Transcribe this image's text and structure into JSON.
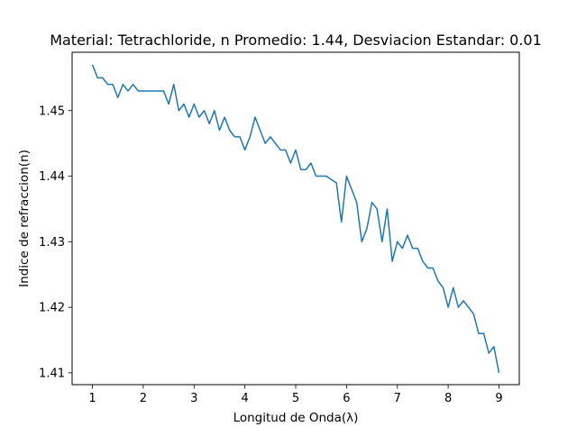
{
  "chart_data": {
    "type": "line",
    "title": "Material: Tetrachloride, n Promedio: 1.44, Desviacion Estandar: 0.01",
    "xlabel": "Longitud de Onda(λ)",
    "ylabel": "Indice de refraccion(n)",
    "xlim": [
      0.6,
      9.4
    ],
    "ylim": [
      1.4082,
      1.4589
    ],
    "x_ticks": [
      1,
      2,
      3,
      4,
      5,
      6,
      7,
      8,
      9
    ],
    "x_tick_labels": [
      "1",
      "2",
      "3",
      "4",
      "5",
      "6",
      "7",
      "8",
      "9"
    ],
    "y_ticks": [
      1.41,
      1.42,
      1.43,
      1.44,
      1.45
    ],
    "y_tick_labels": [
      "1.41",
      "1.42",
      "1.43",
      "1.44",
      "1.45"
    ],
    "grid": false,
    "line_color": "#1f77b4",
    "series": [
      {
        "x": [
          1.0,
          1.1,
          1.2,
          1.3,
          1.4,
          1.5,
          1.6,
          1.7,
          1.8,
          1.9,
          2.0,
          2.1,
          2.2,
          2.3,
          2.4,
          2.5,
          2.6,
          2.7,
          2.8,
          2.9,
          3.0,
          3.1,
          3.2,
          3.3,
          3.4,
          3.5,
          3.6,
          3.7,
          3.8,
          3.9,
          4.0,
          4.1,
          4.2,
          4.3,
          4.4,
          4.5,
          4.6,
          4.7,
          4.8,
          4.9,
          5.0,
          5.1,
          5.2,
          5.3,
          5.4,
          5.5,
          5.6,
          5.7,
          5.8,
          5.9,
          6.0,
          6.1,
          6.2,
          6.3,
          6.4,
          6.5,
          6.6,
          6.7,
          6.8,
          6.9,
          7.0,
          7.1,
          7.2,
          7.3,
          7.4,
          7.5,
          7.6,
          7.7,
          7.8,
          7.9,
          8.0,
          8.1,
          8.2,
          8.3,
          8.4,
          8.5,
          8.6,
          8.7,
          8.8,
          8.9,
          9.0
        ],
        "values": [
          1.457,
          1.455,
          1.455,
          1.454,
          1.454,
          1.452,
          1.454,
          1.453,
          1.454,
          1.453,
          1.453,
          1.453,
          1.453,
          1.453,
          1.453,
          1.451,
          1.454,
          1.45,
          1.451,
          1.449,
          1.451,
          1.449,
          1.45,
          1.448,
          1.45,
          1.447,
          1.449,
          1.447,
          1.446,
          1.446,
          1.444,
          1.446,
          1.449,
          1.447,
          1.445,
          1.446,
          1.445,
          1.444,
          1.444,
          1.442,
          1.444,
          1.441,
          1.441,
          1.442,
          1.44,
          1.44,
          1.44,
          1.4395,
          1.439,
          1.433,
          1.44,
          1.438,
          1.436,
          1.43,
          1.432,
          1.436,
          1.435,
          1.43,
          1.435,
          1.427,
          1.43,
          1.429,
          1.431,
          1.429,
          1.429,
          1.427,
          1.426,
          1.426,
          1.424,
          1.423,
          1.42,
          1.423,
          1.42,
          1.421,
          1.42,
          1.419,
          1.416,
          1.416,
          1.413,
          1.414,
          1.41
        ]
      }
    ]
  }
}
